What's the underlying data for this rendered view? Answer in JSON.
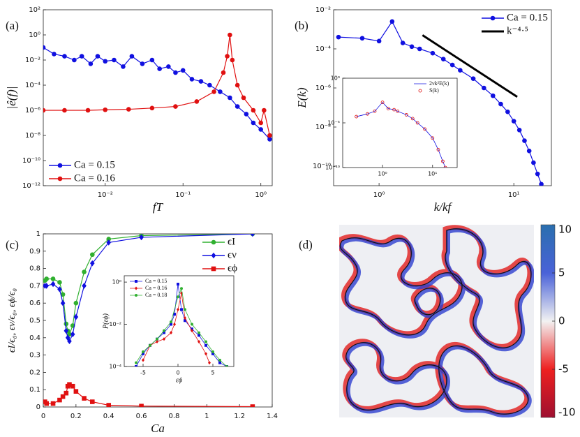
{
  "chart_data": [
    {
      "type": "line",
      "panel": "(a)",
      "xlabel": "fT",
      "ylabel": "|ê(f)|",
      "xlog": true,
      "ylog": true,
      "xlim": [
        0.0016,
        1.4
      ],
      "ylim": [
        1e-12,
        100
      ],
      "xticks": [
        {
          "value": 0.01,
          "label": "10⁻²"
        },
        {
          "value": 0.1,
          "label": "10⁻¹"
        },
        {
          "value": 1,
          "label": "10⁰"
        }
      ],
      "yticks": [
        {
          "value": 100,
          "label": "10²"
        },
        {
          "value": 1,
          "label": "10⁰"
        },
        {
          "value": 0.01,
          "label": "10⁻²"
        },
        {
          "value": 0.0001,
          "label": "10⁻⁴"
        },
        {
          "value": 1e-06,
          "label": "10⁻⁶"
        },
        {
          "value": 1e-08,
          "label": "10⁻⁸"
        },
        {
          "value": 1e-10,
          "label": "10⁻¹⁰"
        },
        {
          "value": 1e-12,
          "label": "10⁻¹²"
        }
      ],
      "legend": "lower left",
      "series": [
        {
          "name": "Ca = 0.15",
          "color": "#1010e0",
          "marker": "circle",
          "x": [
            0.0016,
            0.0022,
            0.003,
            0.004,
            0.005,
            0.0065,
            0.008,
            0.01,
            0.013,
            0.017,
            0.022,
            0.03,
            0.04,
            0.05,
            0.065,
            0.08,
            0.1,
            0.13,
            0.17,
            0.22,
            0.3,
            0.4,
            0.5,
            0.65,
            0.8,
            1.0,
            1.3
          ],
          "values": [
            0.1,
            0.03,
            0.02,
            0.01,
            0.02,
            0.005,
            0.02,
            0.008,
            0.01,
            0.003,
            0.02,
            0.005,
            0.01,
            0.002,
            0.003,
            0.001,
            0.0015,
            0.0003,
            0.0002,
            0.0001,
            3e-05,
            1e-05,
            2e-06,
            5e-07,
            1e-07,
            3e-08,
            5e-09
          ]
        },
        {
          "name": "Ca = 0.16",
          "color": "#e01010",
          "marker": "circle",
          "x": [
            0.0016,
            0.003,
            0.006,
            0.01,
            0.02,
            0.04,
            0.08,
            0.15,
            0.25,
            0.33,
            0.37,
            0.4,
            0.43,
            0.5,
            0.6,
            0.8,
            1.0,
            1.1,
            1.3
          ],
          "values": [
            1e-06,
            1e-06,
            1e-06,
            1.1e-06,
            1.2e-06,
            1.5e-06,
            2e-06,
            5e-06,
            3e-05,
            0.001,
            0.02,
            1,
            0.01,
            0.0001,
            1e-05,
            1e-06,
            1e-07,
            1e-06,
            1e-08
          ]
        }
      ]
    },
    {
      "type": "line",
      "panel": "(b)",
      "xlabel": "k/kf",
      "ylabel": "E(k)",
      "xlog": true,
      "ylog": true,
      "xlim": [
        0.46,
        19
      ],
      "ylim": [
        1e-11,
        0.01
      ],
      "xticks": [
        {
          "value": 1,
          "label": "10⁰"
        },
        {
          "value": 10,
          "label": "10¹"
        }
      ],
      "yticks": [
        {
          "value": 0.01,
          "label": "10⁻²"
        },
        {
          "value": 0.0001,
          "label": "10⁻⁴"
        },
        {
          "value": 1e-06,
          "label": "10⁻⁶"
        },
        {
          "value": 1e-08,
          "label": "10⁻⁸"
        },
        {
          "value": 1e-10,
          "label": "10⁻¹⁰"
        }
      ],
      "legend": "upper right",
      "series": [
        {
          "name": "Ca = 0.15",
          "color": "#1010e0",
          "marker": "circle",
          "x": [
            0.5,
            0.75,
            1.0,
            1.25,
            1.5,
            1.75,
            2,
            2.5,
            3,
            3.5,
            4,
            5,
            6,
            7,
            8,
            9,
            10,
            11,
            12,
            13,
            14,
            15,
            16
          ],
          "values": [
            0.0004,
            0.00035,
            0.00025,
            0.0025,
            0.0002,
            0.00013,
            0.0001,
            6e-05,
            3e-05,
            1.5e-05,
            8e-06,
            3e-06,
            1e-06,
            4e-07,
            1.5e-07,
            6e-08,
            2e-08,
            7e-09,
            2e-09,
            6e-10,
            1.5e-10,
            4e-11,
            1.2e-11
          ]
        },
        {
          "name": "k⁻⁴·⁵",
          "color": "#000000",
          "width": 3,
          "x": [
            2.1,
            10.6
          ],
          "values": [
            0.0005,
            3.5e-07
          ]
        }
      ],
      "inset": {
        "type": "line",
        "xlog": true,
        "ylog": true,
        "xlim": [
          0.16,
          31
        ],
        "ylim": [
          1e-10,
          1
        ],
        "xticks": [
          {
            "value": 1,
            "label": "10⁰"
          },
          {
            "value": 10,
            "label": "10¹"
          }
        ],
        "yticks": [
          {
            "value": 1,
            "label": "10⁰"
          },
          {
            "value": 1e-05,
            "label": "10⁻⁵"
          },
          {
            "value": 1e-10,
            "label": "10⁻¹⁰"
          }
        ],
        "legend": "upper right",
        "series": [
          {
            "name": "2νk²E(k)",
            "color": "#1010e0",
            "x": [
              0.3,
              0.5,
              0.7,
              1,
              1.3,
              1.7,
              2,
              3,
              4,
              5,
              7,
              10,
              13,
              16,
              18
            ],
            "values": [
              5e-05,
              0.0001,
              0.0002,
              0.002,
              0.0004,
              0.0003,
              0.0002,
              8e-05,
              3e-05,
              1e-05,
              2e-06,
              2e-07,
              1e-08,
              5e-10,
              1e-10
            ]
          },
          {
            "name": "S(k)",
            "color": "#e01010",
            "marker": "open-circle",
            "line": false,
            "x": [
              0.3,
              0.5,
              0.7,
              1,
              1.3,
              1.7,
              2,
              3,
              4,
              5,
              7,
              10,
              13,
              16,
              18
            ],
            "values": [
              5e-05,
              0.0001,
              0.0002,
              0.002,
              0.0004,
              0.0003,
              0.0002,
              8e-05,
              3e-05,
              1e-05,
              2e-06,
              2e-07,
              1e-08,
              5e-10,
              1e-10
            ]
          }
        ]
      }
    },
    {
      "type": "line",
      "panel": "(c)",
      "xlabel": "Ca",
      "ylabel": "ϵI/ϵ₀, ϵν/ϵ₀, ϵϕ/ϵ₀",
      "xlim": [
        0,
        1.4
      ],
      "ylim": [
        0,
        1
      ],
      "xticks": [
        0,
        0.2,
        0.4,
        0.6,
        0.8,
        1,
        1.2,
        1.4
      ],
      "yticks": [
        0,
        0.1,
        0.2,
        0.3,
        0.4,
        0.5,
        0.6,
        0.7,
        0.8,
        0.9,
        1
      ],
      "legend": "upper right",
      "series": [
        {
          "name": "ϵI",
          "color": "#30b030",
          "marker": "circle",
          "x": [
            0.01,
            0.02,
            0.06,
            0.1,
            0.12,
            0.14,
            0.15,
            0.16,
            0.18,
            0.2,
            0.25,
            0.3,
            0.4,
            0.6,
            1.28
          ],
          "values": [
            0.73,
            0.74,
            0.74,
            0.72,
            0.65,
            0.48,
            0.44,
            0.42,
            0.47,
            0.6,
            0.78,
            0.88,
            0.97,
            0.99,
            1.0
          ]
        },
        {
          "name": "ϵν",
          "color": "#1010e0",
          "marker": "diamond",
          "x": [
            0.01,
            0.02,
            0.06,
            0.1,
            0.12,
            0.14,
            0.15,
            0.16,
            0.18,
            0.2,
            0.25,
            0.3,
            0.4,
            0.6,
            1.28
          ],
          "values": [
            0.7,
            0.7,
            0.71,
            0.68,
            0.6,
            0.44,
            0.4,
            0.38,
            0.42,
            0.52,
            0.7,
            0.83,
            0.95,
            0.98,
            1.0
          ]
        },
        {
          "name": "ϵϕ",
          "color": "#e01010",
          "marker": "square",
          "x": [
            0.01,
            0.02,
            0.06,
            0.1,
            0.12,
            0.14,
            0.15,
            0.16,
            0.18,
            0.2,
            0.25,
            0.3,
            0.4,
            0.6,
            1.28
          ],
          "values": [
            0.03,
            0.02,
            0.02,
            0.04,
            0.06,
            0.08,
            0.12,
            0.13,
            0.12,
            0.09,
            0.05,
            0.03,
            0.01,
            0.005,
            0.002
          ]
        }
      ],
      "inset": {
        "type": "line",
        "xlabel": "εϕ",
        "ylabel": "P(εϕ)",
        "ylog": true,
        "xlim": [
          -7.7,
          8
        ],
        "ylim": [
          0.0001,
          2
        ],
        "xticks": [
          -5,
          0,
          5
        ],
        "yticks": [
          {
            "value": 1,
            "label": "10⁰"
          },
          {
            "value": 0.01,
            "label": "10⁻²"
          },
          {
            "value": 0.0001,
            "label": "10⁻⁴"
          }
        ],
        "legend": "upper left",
        "series": [
          {
            "name": "Ca = 0.15",
            "color": "#1010e0",
            "marker": "square",
            "x": [
              -6,
              -5,
              -4,
              -3,
              -2,
              -1,
              -0.5,
              0,
              0.5,
              1,
              2,
              3,
              4,
              5,
              6,
              7
            ],
            "values": [
              0.0001,
              0.0004,
              0.001,
              0.002,
              0.004,
              0.01,
              0.03,
              0.8,
              0.05,
              0.015,
              0.006,
              0.003,
              0.001,
              0.0004,
              0.00015,
              0.0001
            ]
          },
          {
            "name": "Ca = 0.16",
            "color": "#e01010",
            "marker": "diamond",
            "x": [
              -5,
              -4,
              -3,
              -2,
              -1,
              -0.5,
              0,
              0.5,
              1,
              2,
              3,
              4,
              4.5
            ],
            "values": [
              0.0002,
              0.001,
              0.0015,
              0.002,
              0.004,
              0.01,
              0.05,
              0.3,
              0.02,
              0.005,
              0.0015,
              0.0004,
              0.00015
            ]
          },
          {
            "name": "Ca = 0.18",
            "color": "#30b030",
            "marker": "circle",
            "x": [
              -6,
              -5,
              -4,
              -3,
              -2,
              -1,
              0,
              0.5,
              1,
              2,
              3,
              4,
              5,
              6,
              7
            ],
            "values": [
              0.00015,
              0.0005,
              0.001,
              0.002,
              0.005,
              0.013,
              0.2,
              0.5,
              0.05,
              0.01,
              0.004,
              0.0015,
              0.0005,
              0.0002,
              0.0001
            ]
          }
        ]
      }
    },
    {
      "type": "image",
      "panel": "(d)",
      "clim": [
        -10,
        10
      ],
      "cticks": [
        10,
        5,
        0,
        -5,
        -10
      ]
    }
  ]
}
